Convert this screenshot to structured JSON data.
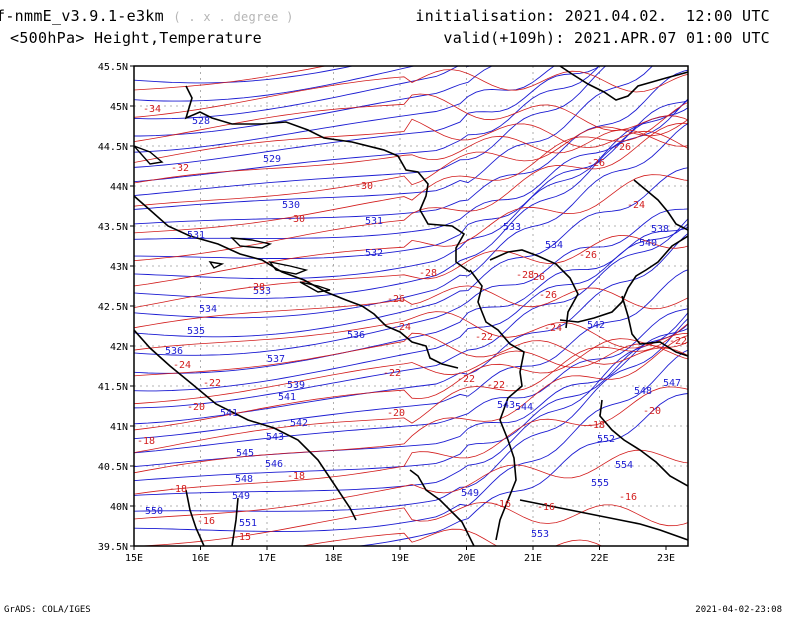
{
  "header": {
    "model": "f-nmmE_v3.9.1-e3km",
    "model_suffix": "( . x . degree )",
    "field": "<500hPa> Height,Temperature",
    "init": "initialisation: 2021.04.02.  12:00 UTC",
    "valid": "valid(+109h): 2021.APR.07 01:00 UTC"
  },
  "footer": {
    "credit": "GrADS: COLA/IGES",
    "timestamp": "2021-04-02-23:08"
  },
  "map": {
    "lat_ticks": [
      "45.5N",
      "45N",
      "44.5N",
      "44N",
      "43.5N",
      "43N",
      "42.5N",
      "42N",
      "41.5N",
      "41N",
      "40.5N",
      "40N",
      "39.5N"
    ],
    "lon_ticks": [
      "15E",
      "16E",
      "17E",
      "18E",
      "19E",
      "20E",
      "21E",
      "22E",
      "23E"
    ],
    "colors": {
      "height": "#1c1cd2",
      "temperature": "#d21c1c",
      "coast": "#000000",
      "grid": "#9a9a9a"
    },
    "height_labels": [
      "528",
      "529",
      "530",
      "531",
      "531",
      "532",
      "533",
      "533",
      "534",
      "534",
      "535",
      "536",
      "536",
      "537",
      "538",
      "539",
      "540",
      "541",
      "541",
      "542",
      "542",
      "543",
      "543",
      "544",
      "545",
      "546",
      "547",
      "548",
      "548",
      "549",
      "549",
      "550",
      "551",
      "552",
      "553",
      "554",
      "555"
    ],
    "temperature_labels": [
      "-34",
      "-32",
      "-30",
      "-30",
      "-28",
      "-28",
      "-28",
      "-26",
      "-26",
      "-26",
      "-26",
      "-26",
      "-26",
      "-24",
      "-24",
      "-24",
      "-24",
      "-22",
      "-22",
      "-22",
      "-22",
      "-22",
      "-22",
      "-20",
      "-20",
      "-20",
      "-18",
      "-18",
      "-18",
      "-18",
      "-16",
      "-16",
      "-16",
      "-16",
      "-15"
    ]
  }
}
